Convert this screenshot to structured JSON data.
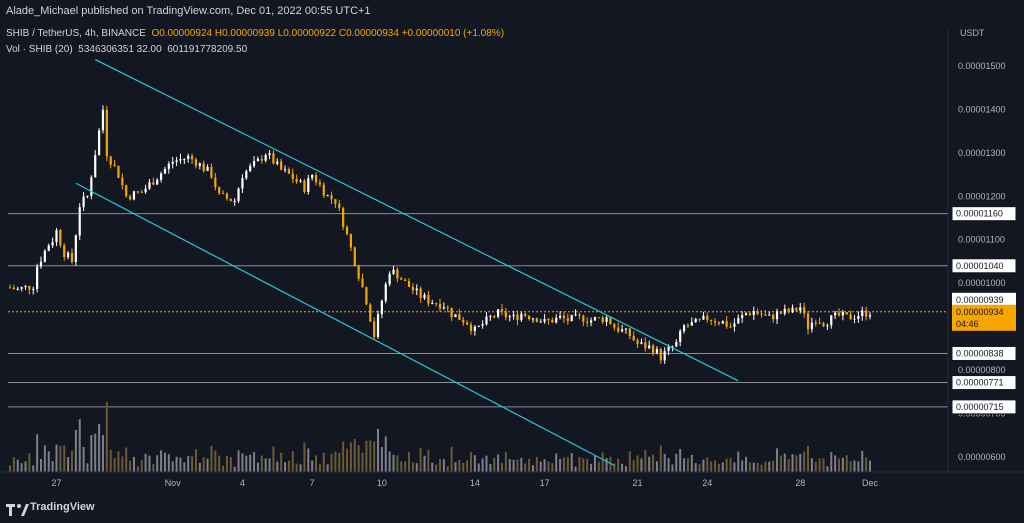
{
  "header": {
    "published_text": "Alade_Michael published on TradingView.com, Dec 01, 2022 00:55 UTC+1"
  },
  "legend": {
    "symbol": "SHIB / TetherUS, 4h, BINANCE",
    "open": "O0.00000924",
    "high": "H0.00000939",
    "low": "L0.00000922",
    "close": "C0.00000934",
    "change": "+0.00000010 (+1.08%)",
    "vol_label": "Vol · SHIB (20)",
    "vol_value_1": "5346306351 32.00",
    "vol_value_2": "601191778209.50"
  },
  "footer": {
    "brand": "TradingView"
  },
  "colors": {
    "background": "#131722",
    "up": "#ffffff",
    "down": "#f7a600",
    "channel": "#26c6da",
    "level_line": "#8a8d96",
    "current_price": "#f7a600"
  },
  "chart_data": {
    "type": "candlestick",
    "currency": "USDT",
    "y_axis_labels": [
      "0.00001500",
      "0.00001400",
      "0.00001300",
      "0.00001200",
      "0.00001100",
      "0.00001000",
      "0.00000800",
      "0.00000700",
      "0.00000600"
    ],
    "x_axis_labels": [
      "27",
      "Nov",
      "4",
      "7",
      "10",
      "14",
      "17",
      "21",
      "24",
      "28",
      "Dec"
    ],
    "horizontal_levels": [
      {
        "label": "0.00001160",
        "value": 1.16e-05
      },
      {
        "label": "0.00001040",
        "value": 1.04e-05
      },
      {
        "label": "0.00000838",
        "value": 8.38e-06
      },
      {
        "label": "0.00000771",
        "value": 7.71e-06
      },
      {
        "label": "0.00000715",
        "value": 7.15e-06
      }
    ],
    "high_label": "0.00000939",
    "current_price": {
      "label": "0.00000934",
      "countdown": "04:46",
      "value": 9.34e-06
    },
    "ylim": [
      5.65e-06,
      1.56e-05
    ],
    "path_points": [
      [
        "Oct 25 00:00",
        9.9e-06
      ],
      [
        "Oct 25 08:00",
        9.85e-06
      ],
      [
        "Oct 26 00:00",
        9.95e-06
      ],
      [
        "Oct 26 04:00",
        1.04e-05
      ],
      [
        "Oct 26 16:00",
        1.09e-05
      ],
      [
        "Oct 26 20:00",
        1.1e-05
      ],
      [
        "Oct 27 00:00",
        1.12e-05
      ],
      [
        "Oct 27 08:00",
        1.07e-05
      ],
      [
        "Oct 27 16:00",
        1.05e-05
      ],
      [
        "Oct 28 00:00",
        1.18e-05
      ],
      [
        "Oct 28 08:00",
        1.2e-05
      ],
      [
        "Oct 29 00:00",
        1.4e-05
      ],
      [
        "Oct 29 04:00",
        1.3e-05
      ],
      [
        "Oct 29 16:00",
        1.25e-05
      ],
      [
        "Oct 30 00:00",
        1.2e-05
      ],
      [
        "Oct 30 16:00",
        1.21e-05
      ],
      [
        "Nov 01 00:00",
        1.28e-05
      ],
      [
        "Nov 01 16:00",
        1.29e-05
      ],
      [
        "Nov 02 00:00",
        1.28e-05
      ],
      [
        "Nov 02 16:00",
        1.25e-05
      ],
      [
        "Nov 03 00:00",
        1.2e-05
      ],
      [
        "Nov 03 16:00",
        1.19e-05
      ],
      [
        "Nov 04 00:00",
        1.25e-05
      ],
      [
        "Nov 04 16:00",
        1.28e-05
      ],
      [
        "Nov 05 00:00",
        1.3e-05
      ],
      [
        "Nov 05 16:00",
        1.26e-05
      ],
      [
        "Nov 06 00:00",
        1.25e-05
      ],
      [
        "Nov 06 16:00",
        1.22e-05
      ],
      [
        "Nov 07 00:00",
        1.25e-05
      ],
      [
        "Nov 07 16:00",
        1.2e-05
      ],
      [
        "Nov 08 00:00",
        1.19e-05
      ],
      [
        "Nov 08 08:00",
        1.14e-05
      ],
      [
        "Nov 08 16:00",
        1.08e-05
      ],
      [
        "Nov 09 00:00",
        1.02e-05
      ],
      [
        "Nov 09 08:00",
        9.6e-06
      ],
      [
        "Nov 09 16:00",
        8.8e-06
      ],
      [
        "Nov 10 00:00",
        9.6e-06
      ],
      [
        "Nov 10 08:00",
        1.03e-05
      ],
      [
        "Nov 10 16:00",
        1.02e-05
      ],
      [
        "Nov 11 00:00",
        1e-05
      ],
      [
        "Nov 11 16:00",
        9.7e-06
      ],
      [
        "Nov 12 00:00",
        9.6e-06
      ],
      [
        "Nov 12 16:00",
        9.5e-06
      ],
      [
        "Nov 13 00:00",
        9.3e-06
      ],
      [
        "Nov 13 16:00",
        9.1e-06
      ],
      [
        "Nov 14 00:00",
        8.9e-06
      ],
      [
        "Nov 14 16:00",
        9.2e-06
      ],
      [
        "Nov 15 00:00",
        9.3e-06
      ],
      [
        "Nov 15 16:00",
        9.2e-06
      ],
      [
        "Nov 16 00:00",
        9.3e-06
      ],
      [
        "Nov 16 16:00",
        9.2e-06
      ],
      [
        "Nov 17 00:00",
        9.1e-06
      ],
      [
        "Nov 17 16:00",
        9.2e-06
      ],
      [
        "Nov 18 00:00",
        9.15e-06
      ],
      [
        "Nov 18 16:00",
        9.2e-06
      ],
      [
        "Nov 19 00:00",
        9.15e-06
      ],
      [
        "Nov 19 16:00",
        9.2e-06
      ],
      [
        "Nov 20 00:00",
        9e-06
      ],
      [
        "Nov 20 16:00",
        8.8e-06
      ],
      [
        "Nov 21 00:00",
        8.6e-06
      ],
      [
        "Nov 21 16:00",
        8.5e-06
      ],
      [
        "Nov 22 00:00",
        8.3e-06
      ],
      [
        "Nov 22 16:00",
        8.6e-06
      ],
      [
        "Nov 23 00:00",
        9e-06
      ],
      [
        "Nov 23 16:00",
        9.1e-06
      ],
      [
        "Nov 24 00:00",
        9.2e-06
      ],
      [
        "Nov 24 16:00",
        9.1e-06
      ],
      [
        "Nov 25 00:00",
        9e-06
      ],
      [
        "Nov 25 16:00",
        9.3e-06
      ],
      [
        "Nov 26 00:00",
        9.35e-06
      ],
      [
        "Nov 26 16:00",
        9.2e-06
      ],
      [
        "Nov 27 00:00",
        9.3e-06
      ],
      [
        "Nov 27 16:00",
        9.35e-06
      ],
      [
        "Nov 28 00:00",
        9.45e-06
      ],
      [
        "Nov 28 08:00",
        9e-06
      ],
      [
        "Nov 28 16:00",
        9.2e-06
      ],
      [
        "Nov 29 00:00",
        9.1e-06
      ],
      [
        "Nov 29 16:00",
        9.25e-06
      ],
      [
        "Nov 30 00:00",
        9.2e-06
      ],
      [
        "Nov 30 16:00",
        9.3e-06
      ],
      [
        "Dec 01 00:00",
        9.34e-06
      ]
    ]
  }
}
